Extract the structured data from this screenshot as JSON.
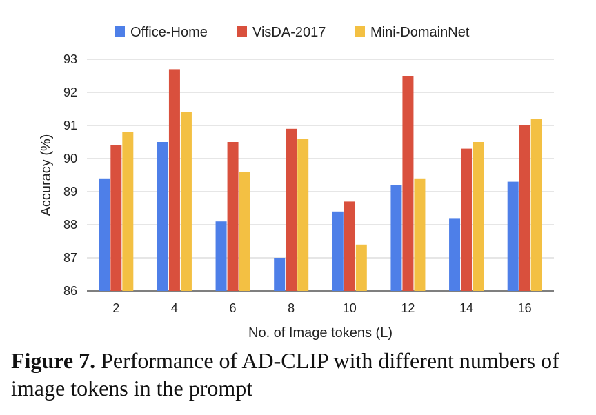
{
  "chart_data": {
    "type": "bar",
    "categories": [
      "2",
      "4",
      "6",
      "8",
      "10",
      "12",
      "14",
      "16"
    ],
    "series": [
      {
        "name": "Office-Home",
        "color": "#4e7fe8",
        "values": [
          89.4,
          90.5,
          88.1,
          87.0,
          88.4,
          89.2,
          88.2,
          89.3
        ]
      },
      {
        "name": "VisDA-2017",
        "color": "#d9503d",
        "values": [
          90.4,
          92.7,
          90.5,
          90.9,
          88.7,
          92.5,
          90.3,
          91.0
        ]
      },
      {
        "name": "Mini-DomainNet",
        "color": "#f3c043",
        "values": [
          90.8,
          91.4,
          89.6,
          90.6,
          87.4,
          89.4,
          90.5,
          91.2
        ]
      }
    ],
    "xlabel": "No. of Image tokens (L)",
    "ylabel": "Accuracy (%)",
    "ylim": [
      86,
      93
    ],
    "yticks": [
      86,
      87,
      88,
      89,
      90,
      91,
      92,
      93
    ],
    "grid": true,
    "legend": "top"
  },
  "caption": {
    "label": "Figure 7.",
    "text": " Performance of AD-CLIP with different numbers of image tokens in the prompt"
  }
}
